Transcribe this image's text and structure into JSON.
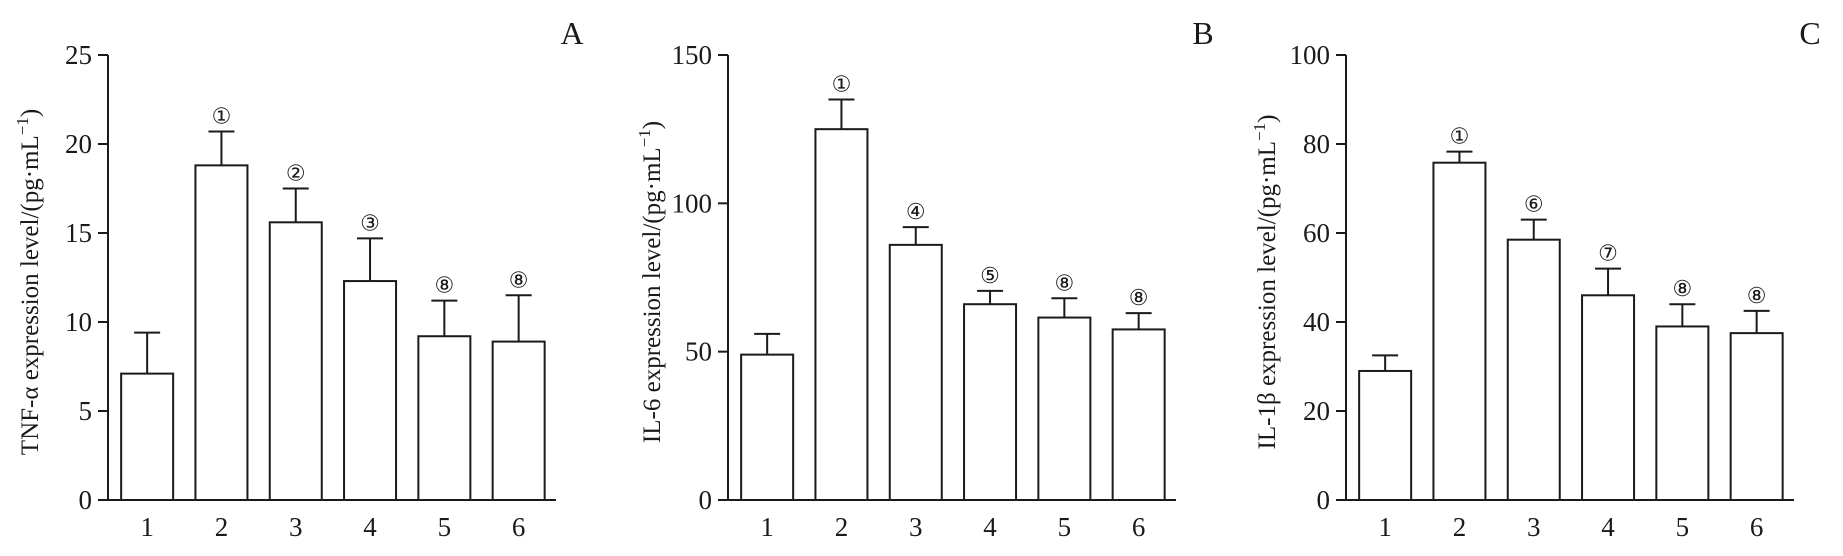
{
  "chart_data": [
    {
      "type": "bar",
      "panel_label": "A",
      "categories": [
        "1",
        "2",
        "3",
        "4",
        "5",
        "6"
      ],
      "values": [
        7.1,
        18.8,
        15.6,
        12.3,
        9.2,
        8.9
      ],
      "errors": [
        2.3,
        1.9,
        1.9,
        2.4,
        2.0,
        2.6
      ],
      "significance": [
        "",
        "①",
        "②",
        "③",
        "⑧",
        "⑧"
      ],
      "ylabel_main": "TNF-α expression level/(pg·mL",
      "ylabel_sup": "−1",
      "ylabel_end": ")",
      "ylim": [
        0,
        25
      ],
      "yticks": [
        0,
        5,
        10,
        15,
        20,
        25
      ]
    },
    {
      "type": "bar",
      "panel_label": "B",
      "categories": [
        "1",
        "2",
        "3",
        "4",
        "5",
        "6"
      ],
      "values": [
        49,
        125,
        86,
        66,
        61.5,
        57.5
      ],
      "errors": [
        7,
        10,
        6,
        4.5,
        6.5,
        5.5
      ],
      "significance": [
        "",
        "①",
        "④",
        "⑤",
        "⑧",
        "⑧"
      ],
      "ylabel_main": "IL-6 expression level/(pg·mL",
      "ylabel_sup": "−1",
      "ylabel_end": ")",
      "ylim": [
        0,
        150
      ],
      "yticks": [
        0,
        50,
        100,
        150
      ]
    },
    {
      "type": "bar",
      "panel_label": "C",
      "categories": [
        "1",
        "2",
        "3",
        "4",
        "5",
        "6"
      ],
      "values": [
        29,
        75.8,
        58.5,
        46,
        39,
        37.5
      ],
      "errors": [
        3.5,
        2.5,
        4.5,
        6,
        5,
        5
      ],
      "significance": [
        "",
        "①",
        "⑥",
        "⑦",
        "⑧",
        "⑧"
      ],
      "ylabel_main": "IL-1β expression level/(pg·mL",
      "ylabel_sup": "−1",
      "ylabel_end": ")",
      "ylim": [
        0,
        100
      ],
      "yticks": [
        0,
        20,
        40,
        60,
        80,
        100
      ]
    }
  ]
}
